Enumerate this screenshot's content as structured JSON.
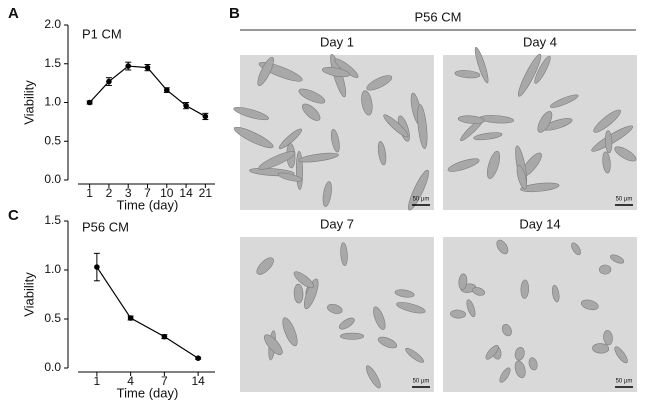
{
  "panel_labels": [
    "A",
    "B",
    "C"
  ],
  "chart_data": [
    {
      "type": "line",
      "title": "P1 CM",
      "x_label": "Time (day)",
      "y_label": "Viability",
      "categories": [
        "1",
        "2",
        "3",
        "7",
        "10",
        "14",
        "21"
      ],
      "values": [
        1.0,
        1.27,
        1.47,
        1.45,
        1.16,
        0.96,
        0.82
      ],
      "errors": [
        0.02,
        0.05,
        0.05,
        0.04,
        0.03,
        0.04,
        0.04
      ],
      "color": "#000000",
      "ylim": [
        0,
        2
      ],
      "yticks": [
        {
          "value": 0,
          "label": "0.0"
        },
        0.5,
        {
          "value": 1,
          "label": "1.0"
        },
        1.5,
        {
          "value": 2,
          "label": "2.0"
        }
      ]
    },
    {
      "type": "line",
      "title": "P56 CM",
      "x_label": "Time (day)",
      "y_label": "Viability",
      "categories": [
        "1",
        "4",
        "7",
        "14"
      ],
      "values": [
        1.03,
        0.51,
        0.32,
        0.1
      ],
      "errors": [
        0.14,
        0.02,
        0.02,
        0.01
      ],
      "color": "#000000",
      "ylim": [
        0,
        1.5
      ],
      "yticks": [
        {
          "value": 0,
          "label": "0.0"
        },
        0.5,
        {
          "value": 1,
          "label": "1.0"
        },
        1.5
      ]
    }
  ],
  "micrographs": {
    "title": "P56 CM",
    "images": [
      {
        "label": "Day 1",
        "scale_bar": "50 µm"
      },
      {
        "label": "Day 4",
        "scale_bar": "50 µm"
      },
      {
        "label": "Day 7",
        "scale_bar": "50 µm"
      },
      {
        "label": "Day 14",
        "scale_bar": "50 µm"
      }
    ]
  }
}
